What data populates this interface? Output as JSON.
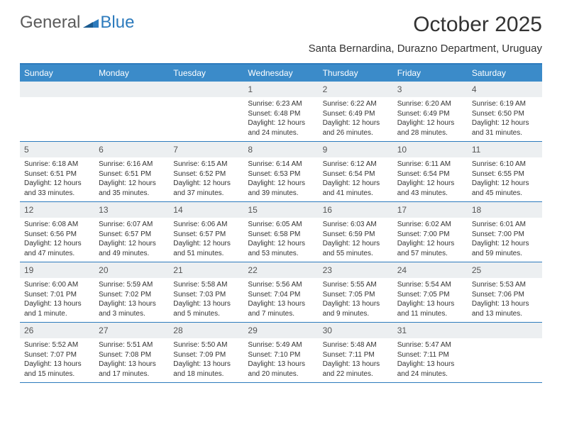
{
  "logo": {
    "part1": "General",
    "part2": "Blue"
  },
  "title": "October 2025",
  "location": "Santa Bernardina, Durazno Department, Uruguay",
  "colors": {
    "accent": "#3b8bc9",
    "border": "#2d7bbd",
    "daynum_bg": "#eceff1"
  },
  "day_names": [
    "Sunday",
    "Monday",
    "Tuesday",
    "Wednesday",
    "Thursday",
    "Friday",
    "Saturday"
  ],
  "weeks": [
    [
      {
        "n": "",
        "sr": "",
        "ss": "",
        "dl": ""
      },
      {
        "n": "",
        "sr": "",
        "ss": "",
        "dl": ""
      },
      {
        "n": "",
        "sr": "",
        "ss": "",
        "dl": ""
      },
      {
        "n": "1",
        "sr": "Sunrise: 6:23 AM",
        "ss": "Sunset: 6:48 PM",
        "dl": "Daylight: 12 hours and 24 minutes."
      },
      {
        "n": "2",
        "sr": "Sunrise: 6:22 AM",
        "ss": "Sunset: 6:49 PM",
        "dl": "Daylight: 12 hours and 26 minutes."
      },
      {
        "n": "3",
        "sr": "Sunrise: 6:20 AM",
        "ss": "Sunset: 6:49 PM",
        "dl": "Daylight: 12 hours and 28 minutes."
      },
      {
        "n": "4",
        "sr": "Sunrise: 6:19 AM",
        "ss": "Sunset: 6:50 PM",
        "dl": "Daylight: 12 hours and 31 minutes."
      }
    ],
    [
      {
        "n": "5",
        "sr": "Sunrise: 6:18 AM",
        "ss": "Sunset: 6:51 PM",
        "dl": "Daylight: 12 hours and 33 minutes."
      },
      {
        "n": "6",
        "sr": "Sunrise: 6:16 AM",
        "ss": "Sunset: 6:51 PM",
        "dl": "Daylight: 12 hours and 35 minutes."
      },
      {
        "n": "7",
        "sr": "Sunrise: 6:15 AM",
        "ss": "Sunset: 6:52 PM",
        "dl": "Daylight: 12 hours and 37 minutes."
      },
      {
        "n": "8",
        "sr": "Sunrise: 6:14 AM",
        "ss": "Sunset: 6:53 PM",
        "dl": "Daylight: 12 hours and 39 minutes."
      },
      {
        "n": "9",
        "sr": "Sunrise: 6:12 AM",
        "ss": "Sunset: 6:54 PM",
        "dl": "Daylight: 12 hours and 41 minutes."
      },
      {
        "n": "10",
        "sr": "Sunrise: 6:11 AM",
        "ss": "Sunset: 6:54 PM",
        "dl": "Daylight: 12 hours and 43 minutes."
      },
      {
        "n": "11",
        "sr": "Sunrise: 6:10 AM",
        "ss": "Sunset: 6:55 PM",
        "dl": "Daylight: 12 hours and 45 minutes."
      }
    ],
    [
      {
        "n": "12",
        "sr": "Sunrise: 6:08 AM",
        "ss": "Sunset: 6:56 PM",
        "dl": "Daylight: 12 hours and 47 minutes."
      },
      {
        "n": "13",
        "sr": "Sunrise: 6:07 AM",
        "ss": "Sunset: 6:57 PM",
        "dl": "Daylight: 12 hours and 49 minutes."
      },
      {
        "n": "14",
        "sr": "Sunrise: 6:06 AM",
        "ss": "Sunset: 6:57 PM",
        "dl": "Daylight: 12 hours and 51 minutes."
      },
      {
        "n": "15",
        "sr": "Sunrise: 6:05 AM",
        "ss": "Sunset: 6:58 PM",
        "dl": "Daylight: 12 hours and 53 minutes."
      },
      {
        "n": "16",
        "sr": "Sunrise: 6:03 AM",
        "ss": "Sunset: 6:59 PM",
        "dl": "Daylight: 12 hours and 55 minutes."
      },
      {
        "n": "17",
        "sr": "Sunrise: 6:02 AM",
        "ss": "Sunset: 7:00 PM",
        "dl": "Daylight: 12 hours and 57 minutes."
      },
      {
        "n": "18",
        "sr": "Sunrise: 6:01 AM",
        "ss": "Sunset: 7:00 PM",
        "dl": "Daylight: 12 hours and 59 minutes."
      }
    ],
    [
      {
        "n": "19",
        "sr": "Sunrise: 6:00 AM",
        "ss": "Sunset: 7:01 PM",
        "dl": "Daylight: 13 hours and 1 minute."
      },
      {
        "n": "20",
        "sr": "Sunrise: 5:59 AM",
        "ss": "Sunset: 7:02 PM",
        "dl": "Daylight: 13 hours and 3 minutes."
      },
      {
        "n": "21",
        "sr": "Sunrise: 5:58 AM",
        "ss": "Sunset: 7:03 PM",
        "dl": "Daylight: 13 hours and 5 minutes."
      },
      {
        "n": "22",
        "sr": "Sunrise: 5:56 AM",
        "ss": "Sunset: 7:04 PM",
        "dl": "Daylight: 13 hours and 7 minutes."
      },
      {
        "n": "23",
        "sr": "Sunrise: 5:55 AM",
        "ss": "Sunset: 7:05 PM",
        "dl": "Daylight: 13 hours and 9 minutes."
      },
      {
        "n": "24",
        "sr": "Sunrise: 5:54 AM",
        "ss": "Sunset: 7:05 PM",
        "dl": "Daylight: 13 hours and 11 minutes."
      },
      {
        "n": "25",
        "sr": "Sunrise: 5:53 AM",
        "ss": "Sunset: 7:06 PM",
        "dl": "Daylight: 13 hours and 13 minutes."
      }
    ],
    [
      {
        "n": "26",
        "sr": "Sunrise: 5:52 AM",
        "ss": "Sunset: 7:07 PM",
        "dl": "Daylight: 13 hours and 15 minutes."
      },
      {
        "n": "27",
        "sr": "Sunrise: 5:51 AM",
        "ss": "Sunset: 7:08 PM",
        "dl": "Daylight: 13 hours and 17 minutes."
      },
      {
        "n": "28",
        "sr": "Sunrise: 5:50 AM",
        "ss": "Sunset: 7:09 PM",
        "dl": "Daylight: 13 hours and 18 minutes."
      },
      {
        "n": "29",
        "sr": "Sunrise: 5:49 AM",
        "ss": "Sunset: 7:10 PM",
        "dl": "Daylight: 13 hours and 20 minutes."
      },
      {
        "n": "30",
        "sr": "Sunrise: 5:48 AM",
        "ss": "Sunset: 7:11 PM",
        "dl": "Daylight: 13 hours and 22 minutes."
      },
      {
        "n": "31",
        "sr": "Sunrise: 5:47 AM",
        "ss": "Sunset: 7:11 PM",
        "dl": "Daylight: 13 hours and 24 minutes."
      },
      {
        "n": "",
        "sr": "",
        "ss": "",
        "dl": ""
      }
    ]
  ]
}
